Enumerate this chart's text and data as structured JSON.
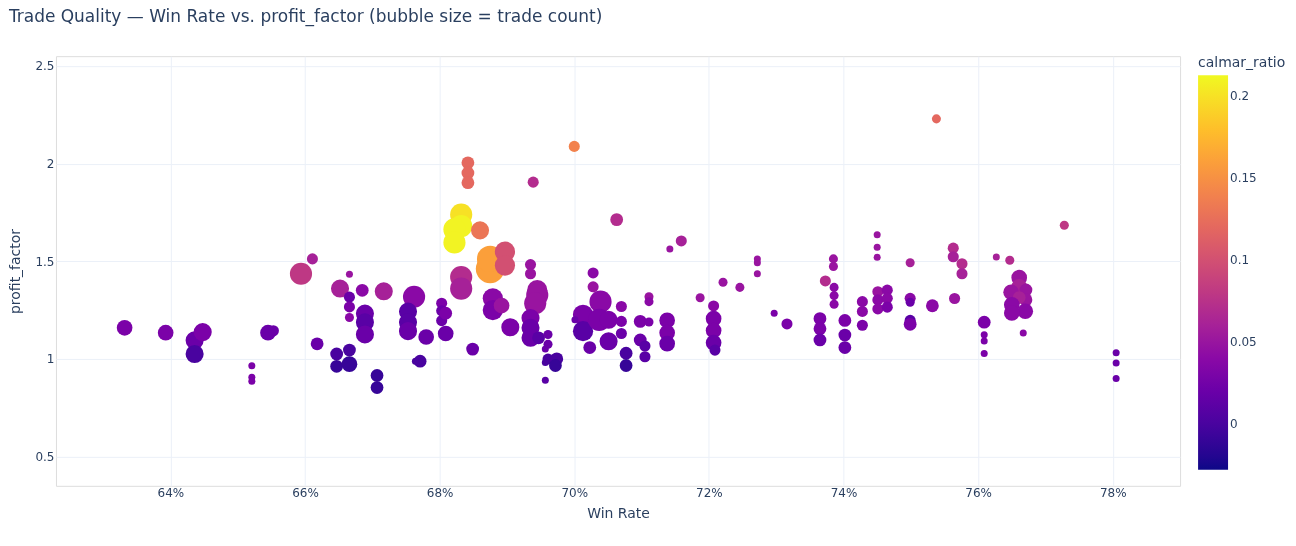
{
  "chart_data": {
    "type": "bubble",
    "title": "Trade Quality — Win Rate vs. profit_factor (bubble size = trade count)",
    "xlabel": "Win Rate",
    "ylabel": "profit_factor",
    "clabel": "calmar_ratio",
    "xlim": [
      62.3,
      79.0
    ],
    "ylim": [
      0.35,
      2.55
    ],
    "xticks": [
      {
        "value": 64,
        "label": "64%"
      },
      {
        "value": 66,
        "label": "66%"
      },
      {
        "value": 68,
        "label": "68%"
      },
      {
        "value": 70,
        "label": "70%"
      },
      {
        "value": 72,
        "label": "72%"
      },
      {
        "value": 74,
        "label": "74%"
      },
      {
        "value": 76,
        "label": "76%"
      },
      {
        "value": 78,
        "label": "78%"
      }
    ],
    "yticks": [
      0.5,
      1,
      1.5,
      2,
      2.5
    ],
    "clim": [
      -0.028,
      0.213
    ],
    "cticks": [
      0,
      0.05,
      0.1,
      0.15,
      0.2
    ],
    "grid": true,
    "marker": "circle",
    "x": [
      63.32,
      63.93,
      64.36,
      64.48,
      64.36,
      65.21,
      65.21,
      65.21,
      65.45,
      65.53,
      65.94,
      66.11,
      66.18,
      66.52,
      66.66,
      66.66,
      66.66,
      66.66,
      66.85,
      66.89,
      66.89,
      66.89,
      67.17,
      67.62,
      67.53,
      67.53,
      67.53,
      67.8,
      67.71,
      67.64,
      66.47,
      66.47,
      66.66,
      66.66,
      67.07,
      67.07,
      68.42,
      68.42,
      68.42,
      70.0,
      69.39,
      68.32,
      68.32,
      68.22,
      68.22,
      68.6,
      68.75,
      68.75,
      68.97,
      68.97,
      68.32,
      68.32,
      69.35,
      69.35,
      69.45,
      69.45,
      69.42,
      70.28,
      70.28,
      68.79,
      68.79,
      68.92,
      68.03,
      68.03,
      68.03,
      68.09,
      68.09,
      69.05,
      69.35,
      69.35,
      69.35,
      69.47,
      69.61,
      69.61,
      69.57,
      68.49,
      69.61,
      69.74,
      69.72,
      69.57,
      69.57,
      70.13,
      70.13,
      70.01,
      70.23,
      70.63,
      71.42,
      71.59,
      70.39,
      70.37,
      70.51,
      70.51,
      70.7,
      70.7,
      70.7,
      70.77,
      70.77,
      71.11,
      71.11,
      70.98,
      71.11,
      70.98,
      71.05,
      71.05,
      71.38,
      71.38,
      71.38,
      71.87,
      72.07,
      72.07,
      72.07,
      72.07,
      72.09,
      72.21,
      72.46,
      72.72,
      72.72,
      72.72,
      72.97,
      73.16,
      73.65,
      73.65,
      73.65,
      73.73,
      73.85,
      73.85,
      73.86,
      73.86,
      73.86,
      74.02,
      74.02,
      74.02,
      74.28,
      74.28,
      74.28,
      74.5,
      74.5,
      74.5,
      74.51,
      74.51,
      74.51,
      74.65,
      74.65,
      74.65,
      74.99,
      75.38,
      74.99,
      74.99,
      74.99,
      74.99,
      75.32,
      75.63,
      75.63,
      75.76,
      75.76,
      75.65,
      76.09,
      76.09,
      76.09,
      76.09,
      76.27,
      76.47,
      76.61,
      76.61,
      76.71,
      76.49,
      76.71,
      76.61,
      76.5,
      76.7,
      76.5,
      76.67,
      77.28,
      78.05,
      78.05,
      78.05
    ],
    "values": [
      1.159,
      1.134,
      1.095,
      1.137,
      1.025,
      0.965,
      0.906,
      0.886,
      1.134,
      1.144,
      1.436,
      1.512,
      1.077,
      1.36,
      1.433,
      1.316,
      1.266,
      1.212,
      1.351,
      1.232,
      1.187,
      1.125,
      1.346,
      1.318,
      1.242,
      1.187,
      1.142,
      1.112,
      0.988,
      0.988,
      1.025,
      0.962,
      1.045,
      0.973,
      0.915,
      0.853,
      2.004,
      1.952,
      1.902,
      2.088,
      1.905,
      1.739,
      1.68,
      1.663,
      1.596,
      1.658,
      1.461,
      1.512,
      1.549,
      1.478,
      1.419,
      1.36,
      1.483,
      1.436,
      1.352,
      1.327,
      1.285,
      1.44,
      1.369,
      1.31,
      1.25,
      1.273,
      1.285,
      1.246,
      1.196,
      1.234,
      1.13,
      1.162,
      1.209,
      1.159,
      1.108,
      1.108,
      1.125,
      1.075,
      1.05,
      1.05,
      0.999,
      1.0,
      0.966,
      0.982,
      0.89,
      1.226,
      1.142,
      1.2,
      1.058,
      1.713,
      1.562,
      1.604,
      1.293,
      1.2,
      1.2,
      1.09,
      1.268,
      1.192,
      1.13,
      1.029,
      0.966,
      1.318,
      1.293,
      1.192,
      1.189,
      1.097,
      1.066,
      1.011,
      1.197,
      1.134,
      1.078,
      1.313,
      1.271,
      1.206,
      1.145,
      1.083,
      1.045,
      1.392,
      1.366,
      1.512,
      1.492,
      1.436,
      1.234,
      1.179,
      1.206,
      1.154,
      1.097,
      1.399,
      1.512,
      1.473,
      1.366,
      1.324,
      1.28,
      1.197,
      1.122,
      1.058,
      1.293,
      1.243,
      1.172,
      1.636,
      1.572,
      1.52,
      1.344,
      1.302,
      1.256,
      1.352,
      1.31,
      1.265,
      1.492,
      2.229,
      1.31,
      1.29,
      1.197,
      1.177,
      1.272,
      1.567,
      1.523,
      1.487,
      1.436,
      1.309,
      1.188,
      1.123,
      1.092,
      1.027,
      1.522,
      1.505,
      1.416,
      1.369,
      1.353,
      1.341,
      1.302,
      1.314,
      1.277,
      1.244,
      1.235,
      1.133,
      1.684,
      1.031,
      0.979,
      0.899
    ],
    "sizes": [
      0.3,
      0.3,
      0.4,
      0.4,
      0.4,
      0.06,
      0.06,
      0.06,
      0.3,
      0.15,
      0.6,
      0.15,
      0.2,
      0.4,
      0.06,
      0.15,
      0.15,
      0.1,
      0.2,
      0.4,
      0.4,
      0.4,
      0.4,
      0.6,
      0.4,
      0.4,
      0.4,
      0.3,
      0.2,
      0.06,
      0.2,
      0.2,
      0.2,
      0.3,
      0.2,
      0.2,
      0.2,
      0.2,
      0.2,
      0.15,
      0.15,
      0.6,
      0.6,
      0.6,
      0.6,
      0.4,
      1,
      0.85,
      0.5,
      0.5,
      0.6,
      0.6,
      0.15,
      0.15,
      0.5,
      0.6,
      0.6,
      0.15,
      0.15,
      0.5,
      0.5,
      0.3,
      0.15,
      0.15,
      0.15,
      0.2,
      0.3,
      0.4,
      0.4,
      0.4,
      0.4,
      0.2,
      0.1,
      0.1,
      0.06,
      0.2,
      0.15,
      0.2,
      0.2,
      0.06,
      0.06,
      0.5,
      0.5,
      0.06,
      0.2,
      0.2,
      0.06,
      0.15,
      0.6,
      0.6,
      0.4,
      0.4,
      0.15,
      0.15,
      0.15,
      0.2,
      0.2,
      0.1,
      0.1,
      0.2,
      0.1,
      0.2,
      0.15,
      0.15,
      0.3,
      0.3,
      0.3,
      0.1,
      0.15,
      0.3,
      0.3,
      0.3,
      0.15,
      0.1,
      0.1,
      0.06,
      0.06,
      0.06,
      0.06,
      0.15,
      0.2,
      0.2,
      0.2,
      0.15,
      0.1,
      0.1,
      0.1,
      0.1,
      0.1,
      0.2,
      0.2,
      0.2,
      0.15,
      0.15,
      0.15,
      0.06,
      0.06,
      0.06,
      0.15,
      0.15,
      0.15,
      0.15,
      0.15,
      0.15,
      0.1,
      0.1,
      0.15,
      0.1,
      0.15,
      0.2,
      0.2,
      0.15,
      0.15,
      0.15,
      0.15,
      0.15,
      0.2,
      0.06,
      0.06,
      0.06,
      0.06,
      0.1,
      0.3,
      0.3,
      0.2,
      0.3,
      0.2,
      0.2,
      0.3,
      0.3,
      0.3,
      0.06,
      0.1,
      0.06,
      0.06,
      0.06
    ],
    "cvalues": [
      0.03,
      0.03,
      0.02,
      0.03,
      0.0,
      0.03,
      0.03,
      0.03,
      0.02,
      0.02,
      0.08,
      0.06,
      0.02,
      0.06,
      0.05,
      0.02,
      0.03,
      0.04,
      0.04,
      0.02,
      0.01,
      0.02,
      0.06,
      0.04,
      0.01,
      0.01,
      0.02,
      0.02,
      0.0,
      0.0,
      0.0,
      -0.01,
      0.0,
      -0.01,
      -0.01,
      -0.01,
      0.12,
      0.12,
      0.12,
      0.14,
      0.07,
      0.2,
      0.21,
      0.21,
      0.21,
      0.13,
      0.16,
      0.16,
      0.1,
      0.1,
      0.07,
      0.06,
      0.05,
      0.05,
      0.05,
      0.05,
      0.05,
      0.04,
      0.05,
      0.04,
      0.03,
      0.05,
      0.03,
      0.02,
      0.02,
      0.03,
      0.02,
      0.03,
      0.03,
      0.02,
      0.02,
      0.01,
      0.02,
      0.02,
      0.02,
      0.02,
      0.0,
      0.0,
      -0.01,
      0.0,
      0.01,
      0.03,
      0.01,
      0.02,
      0.02,
      0.07,
      0.05,
      0.06,
      0.04,
      0.03,
      0.03,
      0.02,
      0.04,
      0.03,
      0.02,
      0.0,
      -0.01,
      0.05,
      0.04,
      0.03,
      0.03,
      0.02,
      0.01,
      0.01,
      0.03,
      0.03,
      0.02,
      0.05,
      0.04,
      0.03,
      0.03,
      0.02,
      0.01,
      0.05,
      0.05,
      0.05,
      0.05,
      0.05,
      0.03,
      0.03,
      0.03,
      0.03,
      0.02,
      0.07,
      0.05,
      0.05,
      0.04,
      0.04,
      0.04,
      0.03,
      0.02,
      0.02,
      0.04,
      0.04,
      0.03,
      0.05,
      0.05,
      0.05,
      0.05,
      0.04,
      0.04,
      0.04,
      0.04,
      0.03,
      0.06,
      0.12,
      0.04,
      0.02,
      0.01,
      0.03,
      0.04,
      0.07,
      0.06,
      0.07,
      0.06,
      0.05,
      0.03,
      0.03,
      0.03,
      0.03,
      0.06,
      0.07,
      0.05,
      0.06,
      0.05,
      0.05,
      0.05,
      0.06,
      0.04,
      0.04,
      0.04,
      0.04,
      0.08,
      0.02,
      0.02,
      0.02
    ]
  }
}
